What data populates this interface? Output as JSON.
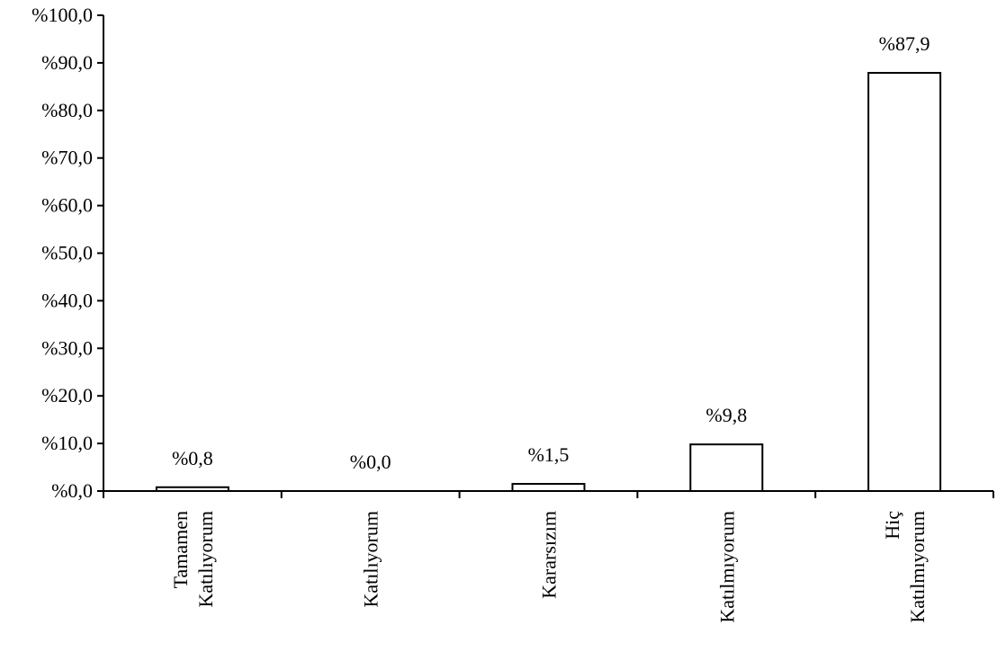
{
  "chart_data": {
    "type": "bar",
    "title": "",
    "xlabel": "",
    "ylabel": "",
    "categories": [
      [
        "Tamamen",
        "Katılıyorum"
      ],
      [
        "Katılıyorum"
      ],
      [
        "Kararsızım"
      ],
      [
        "Katılmıyorum"
      ],
      [
        "Hiç",
        "Katılmıyorum"
      ]
    ],
    "values": [
      0.8,
      0.0,
      1.5,
      9.8,
      87.9
    ],
    "value_labels": [
      "%0,8",
      "%0,0",
      "%1,5",
      "%9,8",
      "%87,9"
    ],
    "ylim": [
      0,
      100
    ],
    "yticks": [
      0,
      10,
      20,
      30,
      40,
      50,
      60,
      70,
      80,
      90,
      100
    ],
    "ytick_labels": [
      "%0,0",
      "%10,0",
      "%20,0",
      "%30,0",
      "%40,0",
      "%50,0",
      "%60,0",
      "%70,0",
      "%80,0",
      "%90,0",
      "%100,0"
    ],
    "grid": false,
    "legend": "none",
    "colors": {
      "bar_fill": "#ffffff",
      "bar_stroke": "#000000",
      "axis": "#000000",
      "text": "#000000"
    }
  }
}
